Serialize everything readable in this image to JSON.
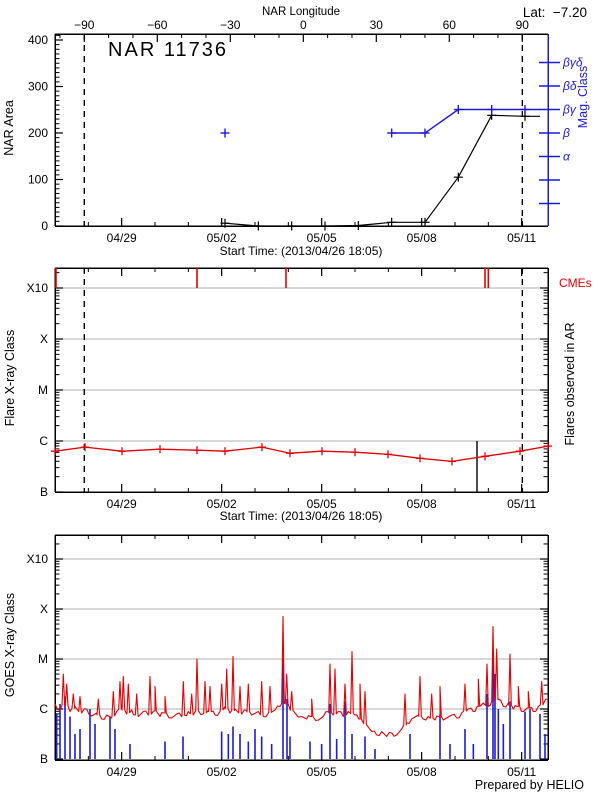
{
  "labels": {
    "title": "NAR 11736",
    "lat": "Lat:  −7.20",
    "lon_axis": "NAR Longitude",
    "area_axis": "NAR Area",
    "mag_axis": "Mag. Class",
    "flare_axis": "Flare X-ray Class",
    "flares_right": "Flares observed in AR",
    "cmes": "CMEs",
    "goes_axis": "GOES X-ray Class",
    "start_time": "Start Time: (2013/04/26 18:05)",
    "credit": "Prepared by HELIO"
  },
  "colors": {
    "red": "#e60000",
    "blue": "#1c1cd8",
    "grid": "#b0b0b0",
    "black": "#000000"
  },
  "chart_data": {
    "type": "line",
    "time_axis": {
      "tick_labels": [
        "04/29",
        "05/02",
        "05/05",
        "05/08",
        "05/11"
      ],
      "tick_T": [
        2,
        5,
        8,
        11,
        14
      ],
      "minor_T": [
        1,
        3,
        4,
        6,
        7,
        9,
        10,
        12,
        13
      ],
      "T_range": [
        0,
        14.79
      ]
    },
    "panels": [
      {
        "name": "nar_area",
        "lon_axis": {
          "tick_values": [
            -90,
            -60,
            -30,
            0,
            30,
            60,
            90
          ],
          "tick_labels": [
            "−90",
            "−60",
            "−30",
            "0",
            "30",
            "60",
            "90"
          ],
          "minor_step": 10,
          "range": [
            -102,
            101
          ]
        },
        "area_axis": {
          "range": [
            0,
            413
          ],
          "ticks": [
            0,
            100,
            200,
            300,
            400
          ],
          "minor_step": 10
        },
        "mag_axis": {
          "levels": [
            "",
            "",
            "α",
            "β",
            "βγ",
            "βδ",
            "βγδ"
          ]
        },
        "limb_lines_T": [
          0.879,
          14.02
        ],
        "area_series": [
          [
            5.1,
            6
          ],
          [
            6.1,
            0
          ],
          [
            7.1,
            0
          ],
          [
            8.1,
            0
          ],
          [
            9.1,
            1
          ],
          [
            10.1,
            8
          ],
          [
            11.1,
            8
          ],
          [
            12.1,
            105
          ],
          [
            13.1,
            238
          ],
          [
            14.1,
            236
          ],
          [
            14.55,
            236
          ]
        ],
        "mag_series": [
          [
            10.1,
            3
          ],
          [
            11.1,
            3
          ],
          [
            12.1,
            4
          ],
          [
            13.1,
            4
          ],
          [
            14.1,
            4
          ],
          [
            14.55,
            4
          ]
        ],
        "mag_point": [
          5.1,
          3
        ]
      },
      {
        "name": "flares",
        "class_axis": {
          "labels": [
            "B",
            "C",
            "M",
            "X",
            "X10"
          ],
          "values": [
            0,
            1,
            2,
            3,
            4
          ],
          "range": [
            0,
            4.39
          ]
        },
        "cme_times_T": [
          0.03,
          4.26,
          6.93,
          12.9,
          13.0
        ],
        "flare_curve": [
          [
            0,
            0.8
          ],
          [
            0.9,
            0.88
          ],
          [
            2.01,
            0.8
          ],
          [
            3.15,
            0.84
          ],
          [
            4.26,
            0.82
          ],
          [
            5.1,
            0.8
          ],
          [
            6.21,
            0.88
          ],
          [
            7.05,
            0.76
          ],
          [
            8.01,
            0.8
          ],
          [
            9.0,
            0.78
          ],
          [
            9.99,
            0.74
          ],
          [
            10.95,
            0.66
          ],
          [
            11.91,
            0.6
          ],
          [
            12.9,
            0.7
          ],
          [
            13.95,
            0.8
          ],
          [
            14.79,
            0.9
          ]
        ],
        "event_line_T": 12.66,
        "limb_lines_T": [
          0.879,
          14.02
        ]
      },
      {
        "name": "goes",
        "class_axis": {
          "labels": [
            "B",
            "C",
            "M",
            "X",
            "X10"
          ],
          "values": [
            0,
            1,
            2,
            3,
            4
          ],
          "range": [
            -0.02,
            4.48
          ]
        },
        "red_base": [
          [
            0,
            1.1
          ],
          [
            0.15,
            0.98
          ],
          [
            0.3,
            1.12
          ],
          [
            0.45,
            0.95
          ],
          [
            0.6,
            1.05
          ],
          [
            0.8,
            0.92
          ],
          [
            0.95,
            1.0
          ],
          [
            1.1,
            0.86
          ],
          [
            1.25,
            0.92
          ],
          [
            1.4,
            0.8
          ],
          [
            1.55,
            0.88
          ],
          [
            1.7,
            0.82
          ],
          [
            1.85,
            0.95
          ],
          [
            2.0,
            1.02
          ],
          [
            2.15,
            0.9
          ],
          [
            2.3,
            0.98
          ],
          [
            2.5,
            0.85
          ],
          [
            2.65,
            0.95
          ],
          [
            2.8,
            0.88
          ],
          [
            3.0,
            0.96
          ],
          [
            3.15,
            0.85
          ],
          [
            3.3,
            0.92
          ],
          [
            3.5,
            0.82
          ],
          [
            3.65,
            0.9
          ],
          [
            3.8,
            0.85
          ],
          [
            4.0,
            0.95
          ],
          [
            4.15,
            0.88
          ],
          [
            4.3,
            1.0
          ],
          [
            4.45,
            0.9
          ],
          [
            4.6,
            0.97
          ],
          [
            4.8,
            0.88
          ],
          [
            4.95,
            0.95
          ],
          [
            5.1,
            1.05
          ],
          [
            5.25,
            0.92
          ],
          [
            5.4,
            1.0
          ],
          [
            5.6,
            0.9
          ],
          [
            5.75,
            0.97
          ],
          [
            5.9,
            0.88
          ],
          [
            6.1,
            0.95
          ],
          [
            6.25,
            0.85
          ],
          [
            6.4,
            0.92
          ],
          [
            6.6,
            0.98
          ],
          [
            6.75,
            1.05
          ],
          [
            6.9,
            1.15
          ],
          [
            7.05,
            1.0
          ],
          [
            7.2,
            0.92
          ],
          [
            7.4,
            0.85
          ],
          [
            7.55,
            0.8
          ],
          [
            7.7,
            0.85
          ],
          [
            7.9,
            0.78
          ],
          [
            8.05,
            0.85
          ],
          [
            8.2,
            0.95
          ],
          [
            8.35,
            0.88
          ],
          [
            8.5,
            0.95
          ],
          [
            8.65,
            0.85
          ],
          [
            8.8,
            0.95
          ],
          [
            9.0,
            0.88
          ],
          [
            9.15,
            0.8
          ],
          [
            9.35,
            0.68
          ],
          [
            9.5,
            0.55
          ],
          [
            9.65,
            0.48
          ],
          [
            9.8,
            0.55
          ],
          [
            9.95,
            0.45
          ],
          [
            10.1,
            0.52
          ],
          [
            10.25,
            0.48
          ],
          [
            10.4,
            0.6
          ],
          [
            10.55,
            0.72
          ],
          [
            10.7,
            0.8
          ],
          [
            10.9,
            0.88
          ],
          [
            11.05,
            0.8
          ],
          [
            11.2,
            0.85
          ],
          [
            11.4,
            0.78
          ],
          [
            11.55,
            0.85
          ],
          [
            11.7,
            0.8
          ],
          [
            11.9,
            0.88
          ],
          [
            12.05,
            0.82
          ],
          [
            12.2,
            0.92
          ],
          [
            12.4,
            1.0
          ],
          [
            12.55,
            0.95
          ],
          [
            12.7,
            1.05
          ],
          [
            12.85,
            1.12
          ],
          [
            13.0,
            1.05
          ],
          [
            13.1,
            1.15
          ],
          [
            13.3,
            1.2
          ],
          [
            13.45,
            1.05
          ],
          [
            13.6,
            1.12
          ],
          [
            13.75,
            1.0
          ],
          [
            13.9,
            1.05
          ],
          [
            14.05,
            0.95
          ],
          [
            14.2,
            1.02
          ],
          [
            14.35,
            0.95
          ],
          [
            14.5,
            1.05
          ],
          [
            14.65,
            1.1
          ],
          [
            14.79,
            1.2
          ]
        ],
        "red_spikes": [
          [
            0.25,
            1.7
          ],
          [
            0.35,
            1.5
          ],
          [
            0.55,
            1.3
          ],
          [
            0.75,
            1.25
          ],
          [
            1.3,
            1.2
          ],
          [
            1.75,
            1.35
          ],
          [
            1.95,
            1.55
          ],
          [
            2.05,
            1.65
          ],
          [
            2.2,
            1.5
          ],
          [
            2.45,
            1.3
          ],
          [
            2.85,
            1.65
          ],
          [
            3.0,
            1.45
          ],
          [
            3.3,
            1.25
          ],
          [
            3.85,
            1.55
          ],
          [
            4.1,
            1.3
          ],
          [
            4.26,
            2.0
          ],
          [
            4.5,
            1.55
          ],
          [
            4.65,
            1.45
          ],
          [
            5.0,
            1.5
          ],
          [
            5.15,
            1.8
          ],
          [
            5.34,
            2.05
          ],
          [
            5.55,
            1.45
          ],
          [
            5.8,
            1.5
          ],
          [
            6.2,
            1.55
          ],
          [
            6.45,
            1.45
          ],
          [
            6.84,
            2.85
          ],
          [
            6.95,
            1.7
          ],
          [
            7.1,
            1.35
          ],
          [
            7.7,
            1.2
          ],
          [
            8.25,
            1.9
          ],
          [
            8.4,
            1.8
          ],
          [
            8.7,
            1.5
          ],
          [
            8.91,
            2.15
          ],
          [
            9.15,
            1.5
          ],
          [
            9.3,
            1.35
          ],
          [
            10.5,
            1.3
          ],
          [
            10.95,
            1.65
          ],
          [
            11.3,
            1.3
          ],
          [
            11.55,
            1.45
          ],
          [
            12.3,
            1.5
          ],
          [
            12.7,
            1.6
          ],
          [
            12.96,
            1.9
          ],
          [
            13.14,
            2.65
          ],
          [
            13.25,
            2.2
          ],
          [
            13.65,
            2.1
          ],
          [
            13.9,
            1.45
          ],
          [
            14.2,
            1.35
          ],
          [
            14.6,
            1.55
          ]
        ],
        "blue_spikes": [
          [
            0.05,
            0.9
          ],
          [
            0.15,
            1.1
          ],
          [
            0.3,
            1.25
          ],
          [
            0.45,
            0.85
          ],
          [
            0.6,
            0.5
          ],
          [
            0.75,
            0.6
          ],
          [
            1.05,
            1.0
          ],
          [
            1.2,
            0.7
          ],
          [
            1.65,
            0.85
          ],
          [
            1.8,
            0.6
          ],
          [
            2.25,
            0.3
          ],
          [
            3.3,
            0.35
          ],
          [
            3.84,
            0.45
          ],
          [
            5.0,
            0.55
          ],
          [
            5.2,
            0.5
          ],
          [
            5.34,
            0.65
          ],
          [
            5.55,
            0.5
          ],
          [
            5.8,
            0.35
          ],
          [
            6.0,
            0.6
          ],
          [
            6.2,
            0.45
          ],
          [
            6.5,
            0.3
          ],
          [
            6.84,
            2.0
          ],
          [
            6.96,
            1.2
          ],
          [
            7.05,
            0.45
          ],
          [
            7.65,
            0.35
          ],
          [
            8.0,
            0.3
          ],
          [
            8.25,
            1.1
          ],
          [
            8.45,
            0.4
          ],
          [
            8.7,
            1.15
          ],
          [
            8.91,
            0.5
          ],
          [
            9.3,
            0.45
          ],
          [
            9.6,
            0.2
          ],
          [
            10.65,
            0.5
          ],
          [
            11.55,
            0.9
          ],
          [
            11.85,
            0.3
          ],
          [
            12.3,
            0.6
          ],
          [
            12.55,
            0.3
          ],
          [
            12.96,
            1.3
          ],
          [
            13.14,
            2.0
          ],
          [
            13.2,
            1.7
          ],
          [
            13.3,
            1.0
          ],
          [
            13.45,
            0.7
          ],
          [
            13.65,
            1.15
          ],
          [
            14.1,
            0.95
          ],
          [
            14.25,
            1.0
          ],
          [
            14.55,
            0.9
          ],
          [
            14.7,
            0.5
          ]
        ]
      }
    ]
  }
}
